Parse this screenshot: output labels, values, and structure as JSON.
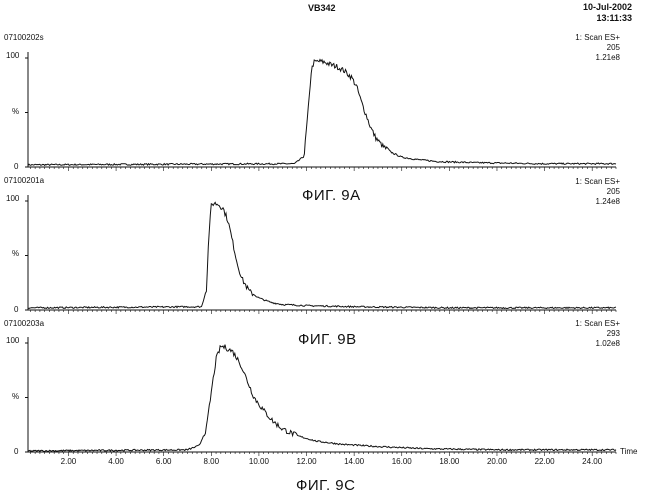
{
  "header": {
    "title": "VB342",
    "date": "10-Jul-2002",
    "time": "13:11:33"
  },
  "x_axis": {
    "label": "Time",
    "ticks": [
      "2.00",
      "4.00",
      "6.00",
      "8.00",
      "10.00",
      "12.00",
      "14.00",
      "16.00",
      "18.00",
      "20.00",
      "22.00",
      "24.00"
    ]
  },
  "chart_data": [
    {
      "type": "line",
      "sample_id": "07100202s",
      "scan": "1: Scan ES+",
      "mass": "205",
      "intensity": "1.21e8",
      "caption": "ФИГ. 9А",
      "y_ticks": [
        "100",
        "%",
        "0"
      ],
      "xlim": [
        0.3,
        25.0
      ],
      "ylim": [
        0,
        100
      ],
      "x": [
        0.3,
        11.5,
        11.9,
        12.1,
        12.2,
        12.3,
        12.5,
        12.8,
        13.0,
        13.3,
        13.6,
        13.9,
        14.1,
        14.3,
        14.5,
        14.7,
        14.9,
        15.2,
        15.6,
        16.0,
        16.6,
        17.5,
        19.0,
        22.0,
        25.0
      ],
      "values": [
        2,
        3,
        10,
        60,
        88,
        96,
        97,
        96,
        94,
        92,
        88,
        82,
        74,
        60,
        48,
        36,
        27,
        19,
        13,
        9,
        7,
        5,
        4,
        3,
        3
      ]
    },
    {
      "type": "line",
      "sample_id": "07100201a",
      "scan": "1: Scan ES+",
      "mass": "205",
      "intensity": "1.24e8",
      "caption": "ФИГ. 9В",
      "y_ticks": [
        "100",
        "%",
        "0"
      ],
      "xlim": [
        0.3,
        25.0
      ],
      "ylim": [
        0,
        100
      ],
      "x": [
        0.3,
        7.6,
        7.8,
        7.9,
        8.0,
        8.1,
        8.3,
        8.5,
        8.7,
        8.9,
        9.1,
        9.3,
        9.6,
        10.0,
        10.5,
        11.0,
        12.0,
        14.0,
        18.0,
        25.0
      ],
      "values": [
        2,
        3,
        20,
        70,
        96,
        98,
        97,
        93,
        82,
        62,
        42,
        28,
        17,
        11,
        7,
        5,
        4,
        3,
        2,
        2
      ]
    },
    {
      "type": "line",
      "sample_id": "07100203a",
      "scan": "1: Scan ES+",
      "mass": "293",
      "intensity": "1.02e8",
      "caption": "ФИГ. 9С",
      "y_ticks": [
        "100",
        "%",
        "0"
      ],
      "xlim": [
        0.3,
        25.0
      ],
      "ylim": [
        0,
        100
      ],
      "x": [
        0.3,
        7.0,
        7.5,
        7.8,
        8.0,
        8.2,
        8.4,
        8.6,
        8.9,
        9.2,
        9.5,
        9.8,
        10.2,
        10.6,
        11.0,
        11.6,
        12.4,
        13.5,
        15.0,
        17.0,
        20.0,
        25.0
      ],
      "values": [
        1,
        2,
        6,
        22,
        55,
        85,
        97,
        96,
        92,
        82,
        66,
        50,
        38,
        28,
        21,
        15,
        10,
        7,
        5,
        3,
        2,
        2
      ]
    }
  ]
}
